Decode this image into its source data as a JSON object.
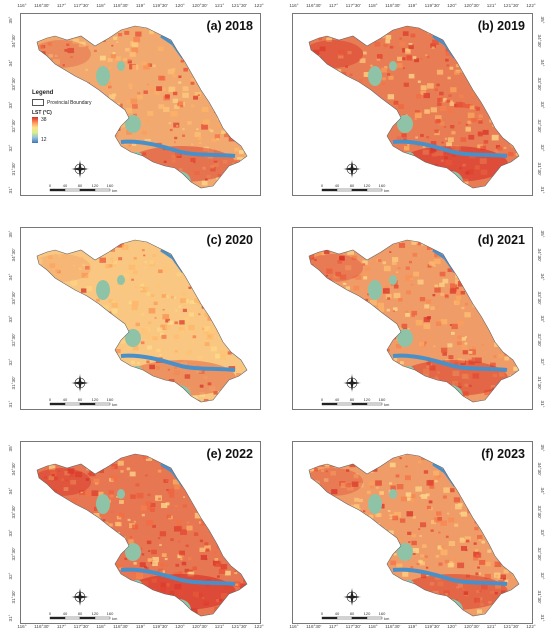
{
  "colors": {
    "hot": "#d73027",
    "warm": "#f46d43",
    "mid": "#fdae61",
    "mild": "#fee090",
    "cool": "#a6d96a",
    "water": "#4a90c8",
    "lake": "#8fc3a8"
  },
  "legend": {
    "title": "Legend",
    "boundary_label": "Provincial Boundary",
    "lst_label": "LST (°C)",
    "max": "38",
    "min": "12"
  },
  "top_ticks": [
    "116°",
    "116°30'",
    "117°",
    "117°30'",
    "118°",
    "118°30'",
    "119°",
    "119°30'",
    "120°",
    "120°30'",
    "121°",
    "121°30'",
    "122°"
  ],
  "lat_ticks": [
    "35°",
    "34°30'",
    "34°",
    "33°30'",
    "33°",
    "32°30'",
    "32°",
    "31°30'",
    "31°"
  ],
  "scale_ticks": [
    "0",
    "40",
    "80",
    "120",
    "160"
  ],
  "scale_unit": "km",
  "compass_letters": {
    "n": "N",
    "s": "S",
    "e": "E",
    "w": "W"
  },
  "panels": [
    {
      "label": "(a) 2018",
      "heat": 0.45
    },
    {
      "label": "(b) 2019",
      "heat": 0.8
    },
    {
      "label": "(c) 2020",
      "heat": 0.2
    },
    {
      "label": "(d) 2021",
      "heat": 0.55
    },
    {
      "label": "(e) 2022",
      "heat": 0.85
    },
    {
      "label": "(f) 2023",
      "heat": 0.55
    }
  ]
}
